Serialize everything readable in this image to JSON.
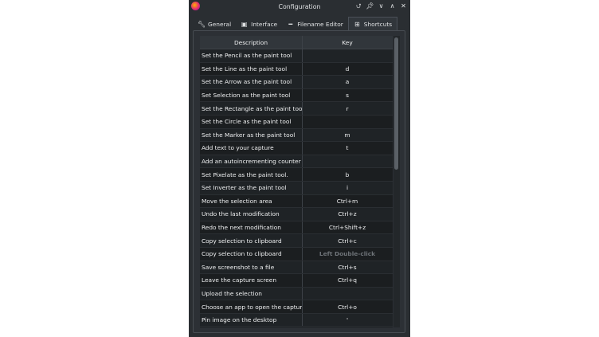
{
  "window": {
    "title": "Configuration",
    "buttons": [
      "keep-above",
      "pin",
      "minimize",
      "maximize",
      "close"
    ]
  },
  "tabs": [
    {
      "label": "General",
      "icon": "wrench-icon"
    },
    {
      "label": "Interface",
      "icon": "display-icon"
    },
    {
      "label": "Filename Editor",
      "icon": "text-icon"
    },
    {
      "label": "Shortcuts",
      "icon": "grid-icon",
      "active": true
    }
  ],
  "table": {
    "headers": [
      "Description",
      "Key"
    ],
    "rows": [
      [
        "Set the Pencil as the paint tool",
        ""
      ],
      [
        "Set the Line as the paint tool",
        "d"
      ],
      [
        "Set the Arrow as the paint tool",
        "a"
      ],
      [
        "Set Selection as the paint tool",
        "s"
      ],
      [
        "Set the Rectangle as the paint tool",
        "r"
      ],
      [
        "Set the Circle as the paint tool",
        ""
      ],
      [
        "Set the Marker as the paint tool",
        "m"
      ],
      [
        "Add text to your capture",
        "t"
      ],
      [
        "Add an autoincrementing counter ...",
        ""
      ],
      [
        "Set Pixelate as the paint tool.",
        "b"
      ],
      [
        "Set Inverter as the paint tool",
        "i"
      ],
      [
        "Move the selection area",
        "Ctrl+m"
      ],
      [
        "Undo the last modification",
        "Ctrl+z"
      ],
      [
        "Redo the next modification",
        "Ctrl+Shift+z"
      ],
      [
        "Copy selection to clipboard",
        "Ctrl+c"
      ],
      [
        "Copy selection to clipboard",
        "Left Double-click"
      ],
      [
        "Save screenshot to a file",
        "Ctrl+s"
      ],
      [
        "Leave the capture screen",
        "Ctrl+q"
      ],
      [
        "Upload the selection",
        ""
      ],
      [
        "Choose an app to open the capture",
        "Ctrl+o"
      ],
      [
        "Pin image on the desktop",
        "'"
      ]
    ],
    "disabled_row": 15
  }
}
